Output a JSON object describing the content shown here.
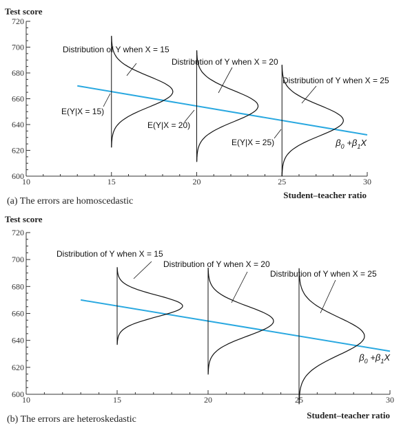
{
  "colors": {
    "regression_line": "#29a8e0",
    "curves": "#111111",
    "axes": "#333333"
  },
  "chart_data": [
    {
      "type": "line",
      "ylabel": "Test score",
      "xlabel": "Student–teacher ratio",
      "caption_prefix": "(a)",
      "caption": "The errors are homoscedastic",
      "xlim": [
        10,
        30
      ],
      "ylim": [
        600,
        720
      ],
      "x_ticks": [
        "10",
        "15",
        "20",
        "25",
        "30"
      ],
      "y_ticks": [
        "600",
        "620",
        "640",
        "660",
        "680",
        "700",
        "720"
      ],
      "regression_line": {
        "x": [
          13,
          30
        ],
        "y": [
          670,
          632
        ],
        "label_main": "β",
        "label_sub0": "0",
        "label_plus": " +β",
        "label_sub1": "1",
        "label_x": "X"
      },
      "distributions": [
        {
          "x": 15,
          "mean": 665.5,
          "sd": 12,
          "label": "Distribution of Y when X = 15",
          "cond_label": "E(Y|X = 15)"
        },
        {
          "x": 20,
          "mean": 654.3,
          "sd": 12,
          "label": "Distribution of Y when X = 20",
          "cond_label": "E(Y|X = 20)"
        },
        {
          "x": 25,
          "mean": 643.1,
          "sd": 12,
          "label": "Distribution of Y when X = 25",
          "cond_label": "E(Y|X = 25)"
        }
      ]
    },
    {
      "type": "line",
      "ylabel": "Test score",
      "xlabel": "Student–teacher ratio",
      "caption_prefix": "(b)",
      "caption": "The errors are heteroskedastic",
      "xlim": [
        10,
        30
      ],
      "ylim": [
        600,
        720
      ],
      "x_ticks": [
        "10",
        "15",
        "20",
        "25",
        "30"
      ],
      "y_ticks": [
        "600",
        "620",
        "640",
        "660",
        "680",
        "700",
        "720"
      ],
      "regression_line": {
        "x": [
          13,
          30
        ],
        "y": [
          670,
          632
        ],
        "label_main": "β",
        "label_sub0": "0",
        "label_plus": " +β",
        "label_sub1": "1",
        "label_x": "X"
      },
      "distributions": [
        {
          "x": 15,
          "mean": 665.5,
          "sd": 8,
          "label": "Distribution of Y when X = 15"
        },
        {
          "x": 20,
          "mean": 654.3,
          "sd": 11,
          "label": "Distribution of Y when X = 20"
        },
        {
          "x": 25,
          "mean": 643.1,
          "sd": 14,
          "label": "Distribution of Y when X = 25"
        }
      ]
    }
  ]
}
